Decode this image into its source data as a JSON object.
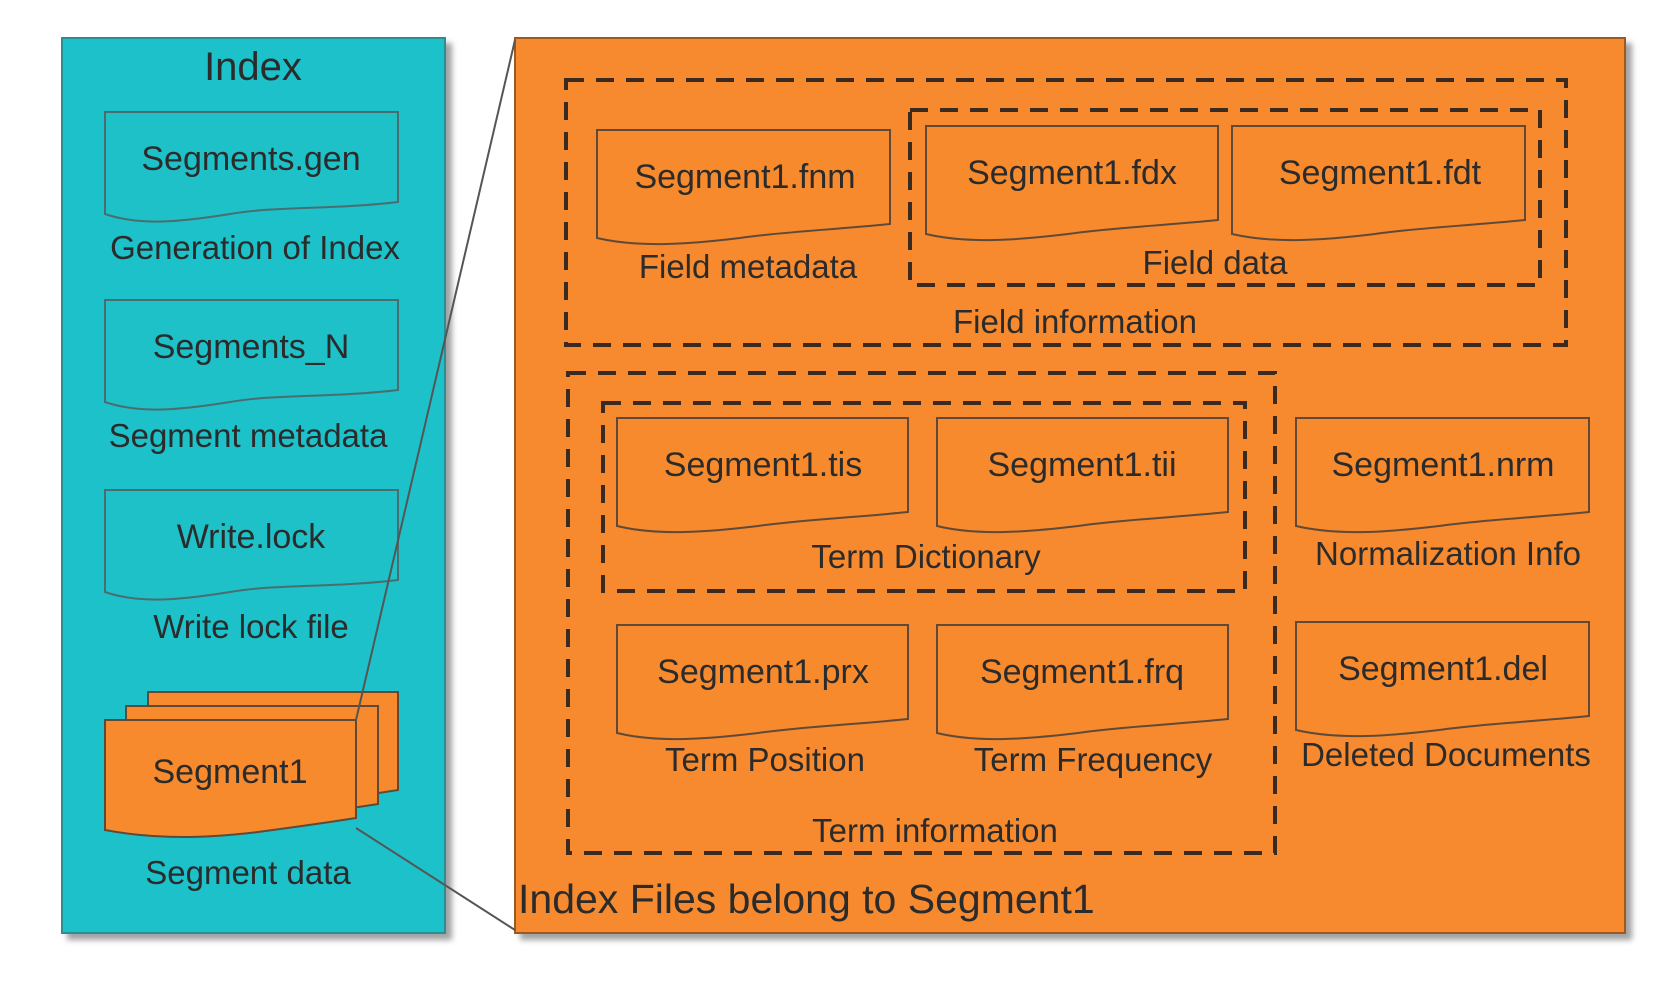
{
  "colors": {
    "index_panel": "#1fc1c9",
    "segment_panel": "#f78a2d",
    "outline": "#5f4a3a",
    "text": "#2b2b2b"
  },
  "index": {
    "title": "Index",
    "files": [
      {
        "name": "Segments.gen",
        "caption": "Generation of Index"
      },
      {
        "name": "Segments_N",
        "caption": "Segment metadata"
      },
      {
        "name": "Write.lock",
        "caption": "Write lock file"
      }
    ],
    "segment": {
      "name": "Segment1",
      "caption": "Segment data"
    }
  },
  "segment_panel": {
    "footer": "Index Files belong to Segment1",
    "field_information": {
      "label": "Field information",
      "metadata_file": {
        "name": "Segment1.fnm",
        "caption": "Field metadata"
      },
      "field_data": {
        "label": "Field data",
        "files": [
          "Segment1.fdx",
          "Segment1.fdt"
        ]
      }
    },
    "term_information": {
      "label": "Term information",
      "dictionary": {
        "label": "Term Dictionary",
        "files": [
          "Segment1.tis",
          "Segment1.tii"
        ]
      },
      "position_file": {
        "name": "Segment1.prx",
        "caption": "Term Position"
      },
      "frequency_file": {
        "name": "Segment1.frq",
        "caption": "Term Frequency"
      }
    },
    "norms_file": {
      "name": "Segment1.nrm",
      "caption": "Normalization Info"
    },
    "deletions_file": {
      "name": "Segment1.del",
      "caption": "Deleted Documents"
    }
  }
}
